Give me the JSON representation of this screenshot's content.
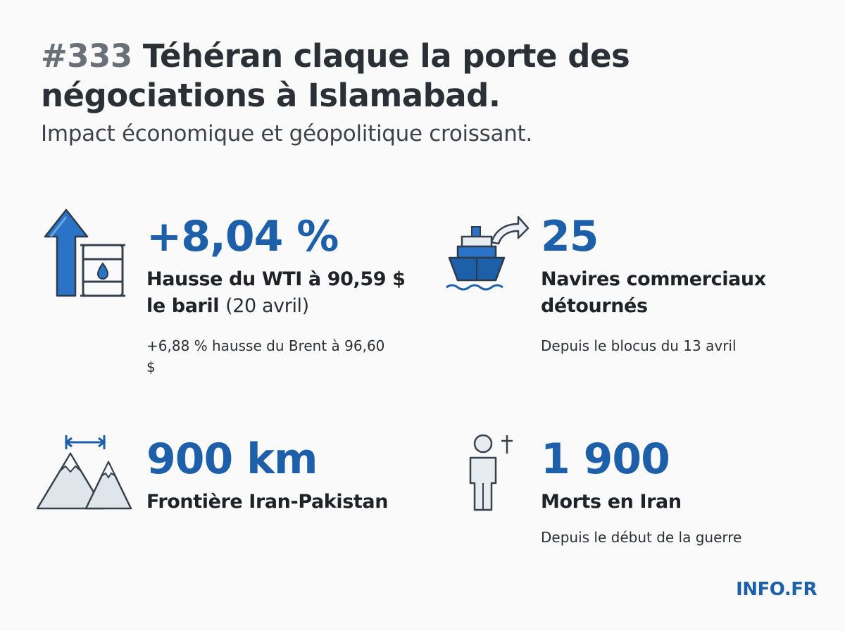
{
  "header": {
    "number": "#333",
    "title": "Téhéran claque la porte des négociations à Islamabad.",
    "subtitle": "Impact économique et géopolitique croissant."
  },
  "stats": [
    {
      "icon": "oil-price-up-icon",
      "value": "+8,04 %",
      "label_bold": "Hausse du WTI à 90,59 $ le baril",
      "label_light": "(20 avril)",
      "note": "+6,88 % hausse du Brent à 96,60 $"
    },
    {
      "icon": "diverted-ship-icon",
      "value": "25",
      "label_bold": "Navires commerciaux détournés",
      "note": "Depuis le blocus du 13 avril"
    },
    {
      "icon": "mountain-border-icon",
      "value": "900 km",
      "label_bold": "Frontière Iran-Pakistan"
    },
    {
      "icon": "deceased-person-icon",
      "value": "1 900",
      "label_bold": "Morts en Iran",
      "note": "Depuis le début de la guerre"
    }
  ],
  "brand": "INFO.FR",
  "colors": {
    "accent": "#1e5faa",
    "text": "#2b3036",
    "icon_stroke": "#35414d"
  }
}
